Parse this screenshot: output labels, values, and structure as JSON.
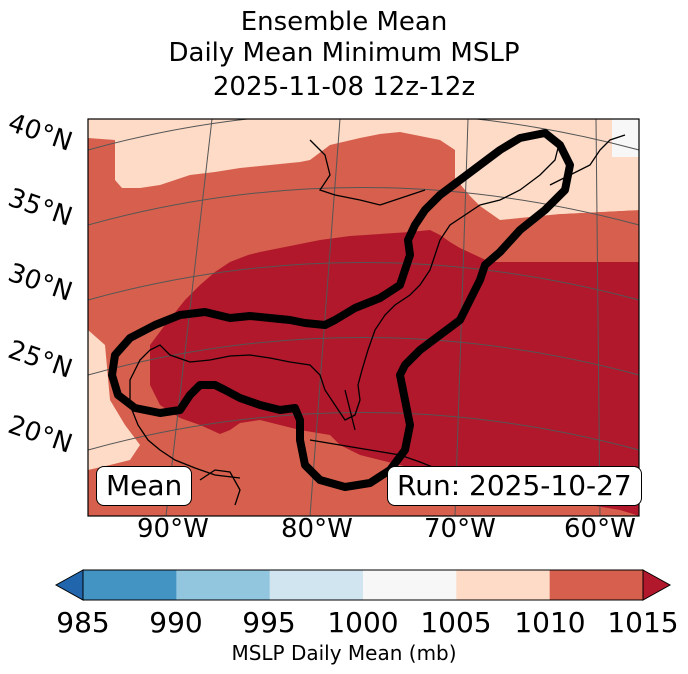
{
  "title": {
    "line1": "Ensemble Mean",
    "line2": "Daily Mean Minimum MSLP",
    "line3": "2025-11-08 12z-12z"
  },
  "map": {
    "lat_labels": [
      "40°N",
      "35°N",
      "30°N",
      "25°N",
      "20°N"
    ],
    "lon_labels": [
      "90°W",
      "80°W",
      "70°W",
      "60°W"
    ],
    "mean_label": "Mean",
    "run_label": "Run: 2025-10-27",
    "fill_colors": {
      "c1005_1010": "#fddbc7",
      "c1010_1015": "#d6604d",
      "c1015_plus": "#b2182b",
      "c1000_1005": "#f7f7f7"
    }
  },
  "colorbar": {
    "ticks": [
      "985",
      "990",
      "995",
      "1000",
      "1005",
      "1010",
      "1015"
    ],
    "label": "MSLP Daily Mean (mb)",
    "colors": [
      "#2166ac",
      "#4393c3",
      "#92c5de",
      "#d1e5f0",
      "#f7f7f7",
      "#fddbc7",
      "#d6604d",
      "#b2182b"
    ]
  }
}
